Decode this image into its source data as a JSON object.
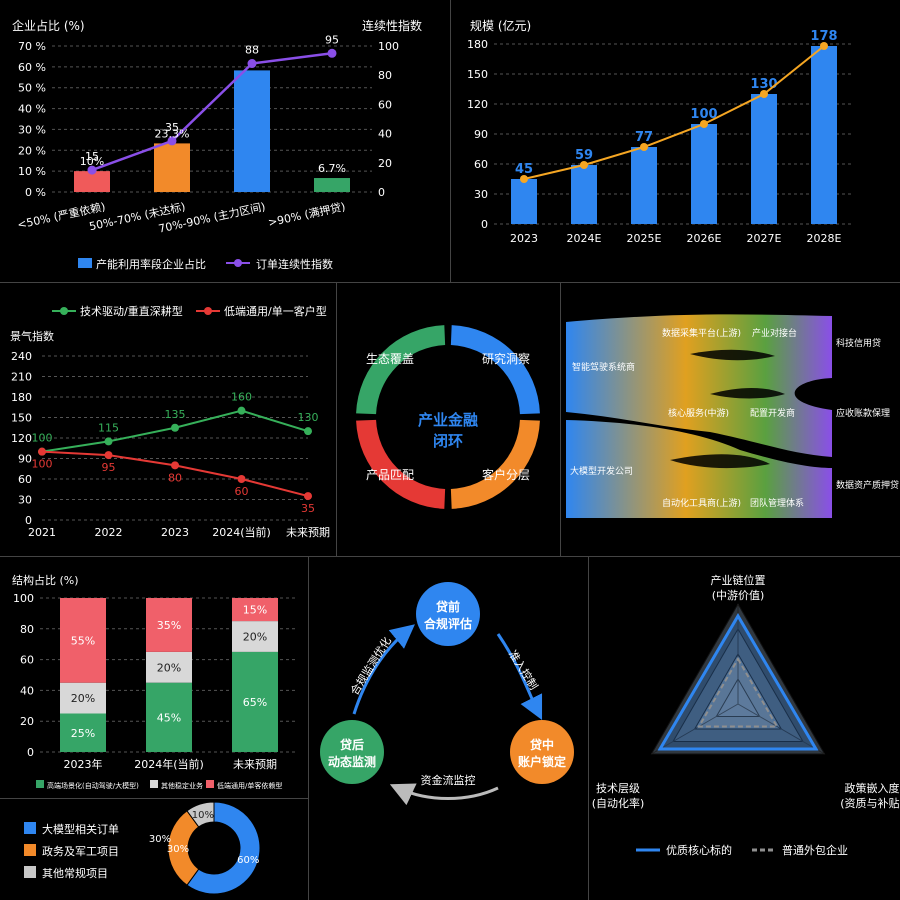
{
  "chart_data": [
    {
      "id": "capacity",
      "type": "bar",
      "ylabel": "企业占比 (%)",
      "y2label": "连续性指数",
      "categories": [
        "<50% (严重依赖)",
        "50%-70% (未达标)",
        "70%-90% (主力区间)",
        ">90% (满押贷)"
      ],
      "bar_series": {
        "name": "产能利用率段企业占比",
        "values": [
          10,
          23.3,
          58.3,
          6.7
        ],
        "labels": [
          "10%",
          "23.3%",
          "",
          "6.7%"
        ],
        "colors": [
          "#f05a5a",
          "#f28a2a",
          "#2f86f0",
          "#36a567"
        ]
      },
      "line_series": {
        "name": "订单连续性指数",
        "values": [
          15,
          35,
          88,
          95
        ],
        "color": "#8a4fe8"
      },
      "ylim": [
        0,
        70
      ],
      "y2lim": [
        0,
        100
      ],
      "yticks": [
        "0 %",
        "10 %",
        "20 %",
        "30 %",
        "40 %",
        "50 %",
        "60 %",
        "70 %"
      ],
      "y2ticks": [
        "0",
        "20",
        "40",
        "60",
        "80",
        "100"
      ]
    },
    {
      "id": "scale",
      "type": "bar",
      "ylabel": "规模 (亿元)",
      "categories": [
        "2023",
        "2024E",
        "2025E",
        "2026E",
        "2027E",
        "2028E"
      ],
      "values": [
        45,
        59,
        77,
        100,
        130,
        178
      ],
      "trend_values": [
        45,
        59,
        77,
        100,
        130,
        178
      ],
      "ylim": [
        0,
        180
      ],
      "yticks": [
        0,
        30,
        60,
        90,
        120,
        150,
        180
      ],
      "bar_color": "#2f86f0",
      "line_color": "#f5a623"
    },
    {
      "id": "climate",
      "type": "line",
      "ylabel": "景气指数",
      "x": [
        "2021",
        "2022",
        "2023",
        "2024(当前)",
        "未来预期"
      ],
      "series": [
        {
          "name": "技术驱动/重直深耕型",
          "values": [
            100,
            115,
            135,
            160,
            130
          ],
          "color": "#36b05a"
        },
        {
          "name": "低端通用/单一客户型",
          "values": [
            100,
            95,
            80,
            60,
            35
          ],
          "color": "#e53935"
        }
      ],
      "labels_green": [
        "100",
        "115",
        "135",
        "160",
        "130"
      ],
      "labels_red": [
        "100",
        "95",
        "80",
        "60",
        "35"
      ],
      "ylim": [
        0,
        240
      ],
      "yticks": [
        0,
        30,
        60,
        90,
        120,
        150,
        180,
        210,
        240
      ]
    },
    {
      "id": "structure",
      "type": "bar",
      "ylabel": "结构占比 (%)",
      "categories": [
        "2023年",
        "2024年(当前)",
        "未来预期"
      ],
      "series": [
        {
          "name": "高端场景化(自动驾驶/大模型)",
          "values": [
            25,
            45,
            65
          ],
          "color": "#36a567"
        },
        {
          "name": "其他稳定业务",
          "values": [
            20,
            20,
            20
          ],
          "color": "#d8d8d8"
        },
        {
          "name": "低端通用/单客依赖型",
          "values": [
            55,
            35,
            15
          ],
          "color": "#f0606a"
        }
      ],
      "labels": [
        [
          "25%",
          "45%",
          "65%"
        ],
        [
          "20%",
          "20%",
          "20%"
        ],
        [
          "55%",
          "35%",
          "15%"
        ]
      ],
      "ylim": [
        0,
        100
      ],
      "yticks": [
        0,
        20,
        40,
        60,
        80,
        100
      ]
    },
    {
      "id": "orders",
      "type": "pie",
      "labels": [
        "大模型相关订单",
        "政务及军工项目",
        "其他常规项目"
      ],
      "values": [
        60,
        30,
        10
      ],
      "value_labels": [
        "60%",
        "30%",
        "10%"
      ],
      "extra_label": "30%",
      "colors": [
        "#2f86f0",
        "#f28a2a",
        "#c8c8c8"
      ]
    },
    {
      "id": "radar",
      "type": "radar",
      "axes": [
        [
          "产业链位置",
          "(中游价值)"
        ],
        [
          "政策嵌入度",
          "(资质与补贴)"
        ],
        [
          "技术层级",
          "(自动化率)"
        ]
      ],
      "series": [
        {
          "name": "优质核心标的",
          "values": [
            0.88,
            0.9,
            0.9
          ],
          "color": "#2f86f0"
        },
        {
          "name": "普通外包企业",
          "values": [
            0.45,
            0.45,
            0.45
          ],
          "color": "#8f8f8f"
        }
      ],
      "rings": 4
    }
  ],
  "cycle": {
    "center": [
      "产业金融",
      "闭环"
    ],
    "segments": [
      {
        "label": "生态覆盖",
        "color": "#36a567"
      },
      {
        "label": "研究洞察",
        "color": "#2f86f0"
      },
      {
        "label": "客户分层",
        "color": "#f28a2a"
      },
      {
        "label": "产品匹配",
        "color": "#e53935"
      }
    ]
  },
  "sankey": {
    "left": [
      "智能驾驶系统商",
      "大模型开发公司"
    ],
    "middle": [
      "数据采集平台(上游)",
      "产业对接台",
      "核心服务(中游)",
      "配置开发商",
      "自动化工具商(上游)",
      "团队管理体系"
    ],
    "right": [
      "科技信用贷",
      "应收账款保理",
      "数据资产质押贷"
    ]
  },
  "loop": {
    "nodes": [
      {
        "line1": "贷前",
        "line2": "合规评估",
        "color": "#2f86f0"
      },
      {
        "line1": "贷中",
        "line2": "账户锁定",
        "color": "#f28a2a"
      },
      {
        "line1": "贷后",
        "line2": "动态监测",
        "color": "#36a567"
      }
    ],
    "arrows": [
      "准入控制",
      "资金流监控",
      "合规监测优化"
    ]
  }
}
